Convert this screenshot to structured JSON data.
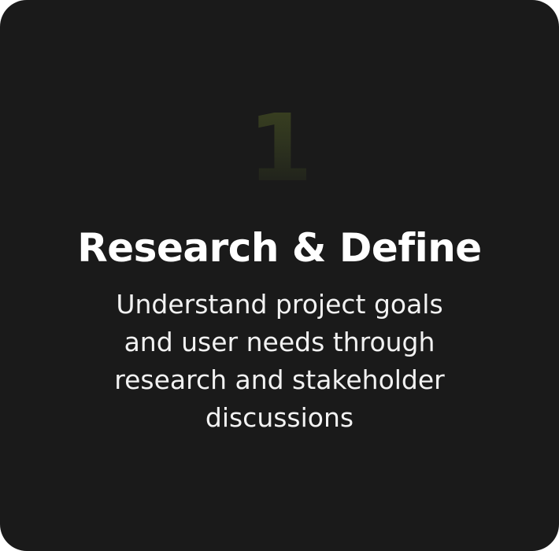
{
  "card": {
    "step_number": "1",
    "title": "Research & Define",
    "description": "Understand project goals and user needs through research and stakeholder discussions"
  },
  "colors": {
    "card_background": "#1a1a1a",
    "title_text": "#ffffff",
    "number_accent": "#3b4220"
  }
}
